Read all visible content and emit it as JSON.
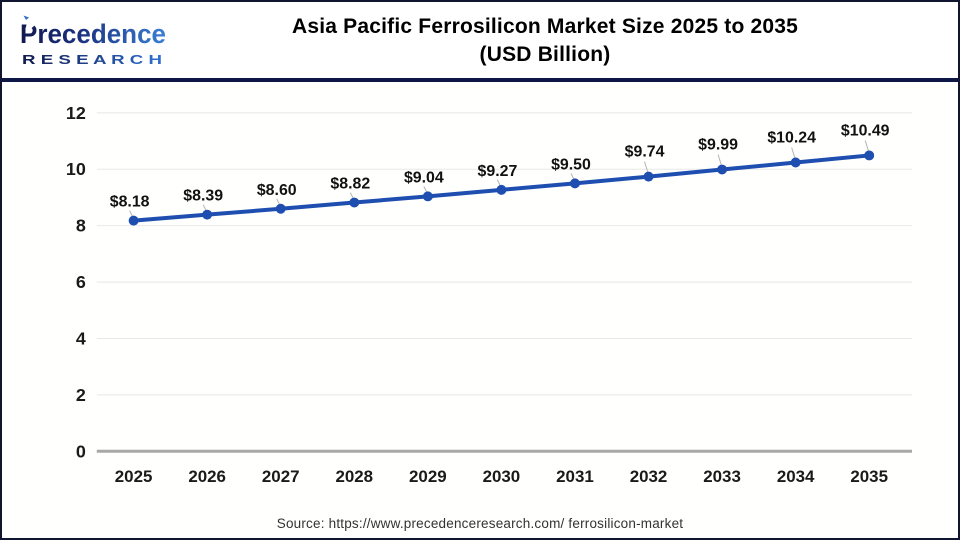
{
  "header": {
    "logo_line1": "Precedence",
    "logo_line2": "R E S E A R C H",
    "title_line1": "Asia Pacific Ferrosilicon Market Size 2025 to 2035",
    "title_line2": "(USD Billion)"
  },
  "chart_data": {
    "type": "line",
    "title": "Asia Pacific Ferrosilicon Market Size 2025 to 2035 (USD Billion)",
    "categories": [
      "2025",
      "2026",
      "2027",
      "2028",
      "2029",
      "2030",
      "2031",
      "2032",
      "2033",
      "2034",
      "2035"
    ],
    "series": [
      {
        "name": "Asia Pacific Ferrosilicon Market Size (USD Billion)",
        "values": [
          8.18,
          8.39,
          8.6,
          8.82,
          9.04,
          9.27,
          9.5,
          9.74,
          9.99,
          10.24,
          10.49
        ]
      }
    ],
    "data_labels": [
      "$8.18",
      "$8.39",
      "$8.60",
      "$8.82",
      "$9.04",
      "$9.27",
      "$9.50",
      "$9.74",
      "$9.99",
      "$10.24",
      "$10.49"
    ],
    "ylim": [
      0,
      12
    ],
    "yticks": [
      0,
      2,
      4,
      6,
      8,
      10,
      12
    ],
    "ytick_labels": [
      "0",
      "2",
      "4",
      "6",
      "8",
      "10",
      "12"
    ],
    "grid": true,
    "legend": "none",
    "colors": {
      "line": "#1f4eb1",
      "marker": "#1f4eb1",
      "grid": "#e8e8e8",
      "zero_axis": "#a8a8a8",
      "tick_text": "#1a1a1a",
      "data_label_text": "#111111",
      "leader_line": "#b3b3b3"
    }
  },
  "footer": {
    "source": "Source: https://www.precedenceresearch.com/ ferrosilicon-market"
  },
  "brand": {
    "navy": "#121a4e",
    "blue": "#3a7fd6"
  }
}
